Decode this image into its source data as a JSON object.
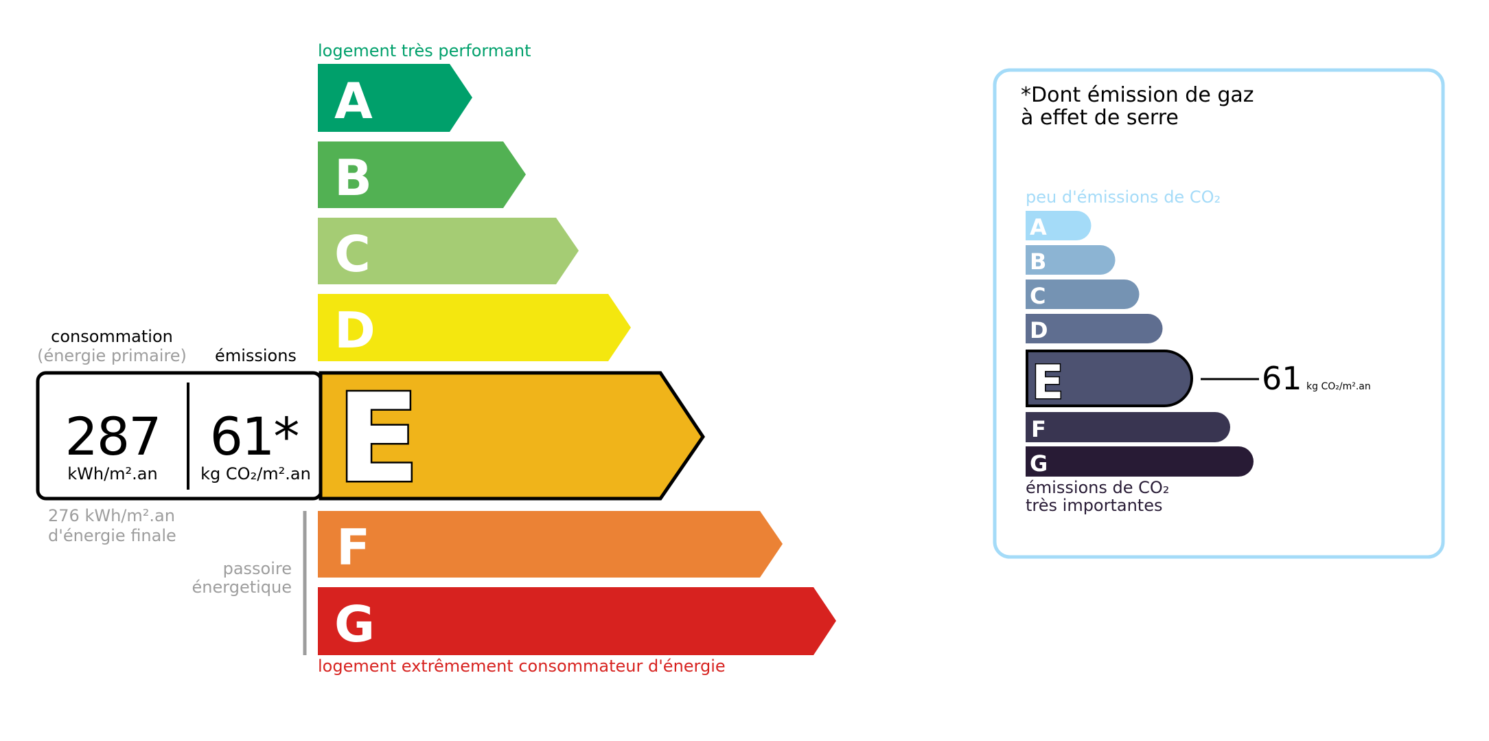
{
  "energy": {
    "top_label": "logement très performant",
    "bottom_label": "logement extrêmement consommateur d'énergie",
    "classes": [
      {
        "letter": "A",
        "color": "#00a06b"
      },
      {
        "letter": "B",
        "color": "#52b153"
      },
      {
        "letter": "C",
        "color": "#a5cc74"
      },
      {
        "letter": "D",
        "color": "#f4e70f"
      },
      {
        "letter": "E",
        "color": "#f0b41a"
      },
      {
        "letter": "F",
        "color": "#eb8235"
      },
      {
        "letter": "G",
        "color": "#d7221f"
      }
    ],
    "current_class": "E",
    "consumption_label": "consommation",
    "consumption_sublabel": "(énergie primaire)",
    "emissions_label": "émissions",
    "consumption_value": "287",
    "consumption_unit": "kWh/m².an",
    "emissions_value": "61*",
    "emissions_unit": "kg CO₂/m².an",
    "final_energy_line1": "276 kWh/m².an",
    "final_energy_line2": "d'énergie finale",
    "passoire_line1": "passoire",
    "passoire_line2": "énergetique",
    "top_label_color": "#00a06b",
    "bottom_label_color": "#d7221f"
  },
  "ghg": {
    "title_line1": "*Dont émission de gaz",
    "title_line2": "à effet de serre",
    "top_label": "peu d'émissions de CO₂",
    "bottom_label_line1": "émissions de CO₂",
    "bottom_label_line2": "très importantes",
    "classes": [
      {
        "letter": "A",
        "color": "#a4dbf8"
      },
      {
        "letter": "B",
        "color": "#8cb4d3"
      },
      {
        "letter": "C",
        "color": "#7593b3"
      },
      {
        "letter": "D",
        "color": "#5f6e90"
      },
      {
        "letter": "E",
        "color": "#4d5271"
      },
      {
        "letter": "F",
        "color": "#393551"
      },
      {
        "letter": "G",
        "color": "#281b35"
      }
    ],
    "current_class": "E",
    "value": "61",
    "unit": "kg CO₂/m².an",
    "border_color": "#a4dbf8"
  }
}
